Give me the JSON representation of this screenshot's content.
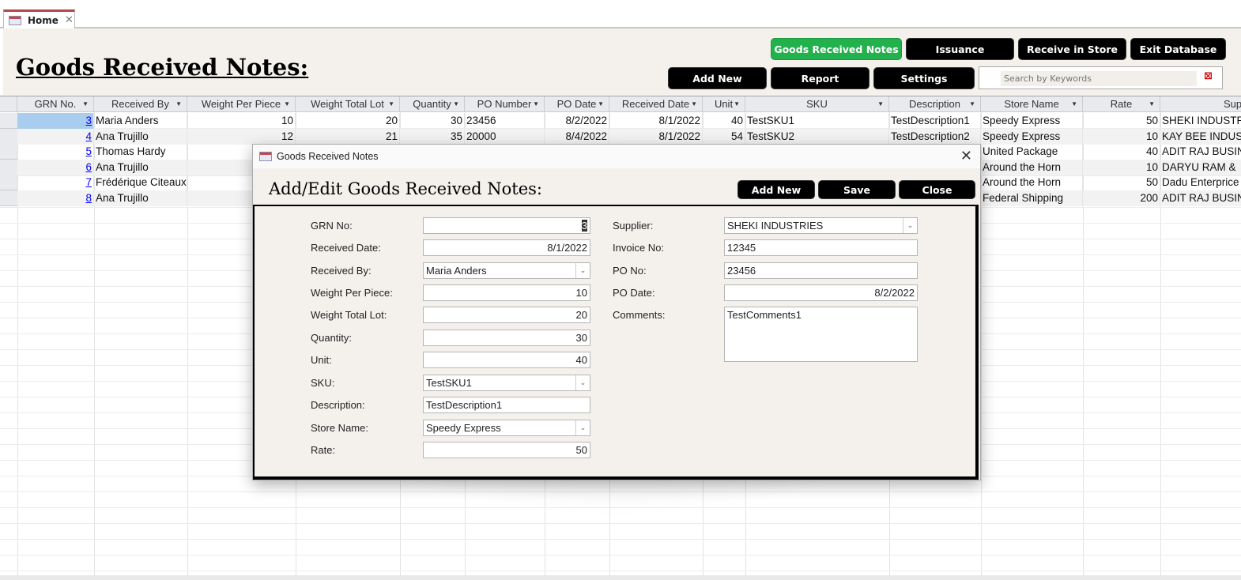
{
  "tab": {
    "label": "Home",
    "icon": "form-icon"
  },
  "header": {
    "title": "Goods Received Notes:",
    "nav_buttons": [
      "Goods Received Notes",
      "Issuance",
      "Receive in Store",
      "Exit Database"
    ],
    "action_buttons": [
      "Add New",
      "Report",
      "Settings"
    ],
    "search_placeholder": "Search by Keywords",
    "active_color": "#22b14c"
  },
  "table": {
    "columns": [
      "GRN No.",
      "Received By",
      "Weight Per Piece",
      "Weight Total Lot",
      "Quantity",
      "PO Number",
      "PO Date",
      "Received Date",
      "Unit",
      "SKU",
      "Description",
      "Store Name",
      "Rate",
      "Supplier"
    ],
    "rows": [
      [
        "3",
        "Maria Anders",
        "10",
        "20",
        "30",
        "23456",
        "8/2/2022",
        "8/1/2022",
        "40",
        "TestSKU1",
        "TestDescription1",
        "Speedy Express",
        "50",
        "SHEKI INDUSTR"
      ],
      [
        "4",
        "Ana Trujillo",
        "12",
        "21",
        "35",
        "20000",
        "8/4/2022",
        "8/1/2022",
        "54",
        "TestSKU2",
        "TestDescription2",
        "Speedy Express",
        "10",
        "KAY BEE INDUS"
      ],
      [
        "5",
        "Thomas Hardy",
        "",
        "",
        "",
        "",
        "",
        "",
        "",
        "",
        "",
        "United Package",
        "40",
        "ADIT RAJ BUSIN"
      ],
      [
        "6",
        "Ana Trujillo",
        "",
        "",
        "",
        "",
        "",
        "",
        "",
        "",
        "",
        "Around the Horn",
        "10",
        "DARYU RAM &"
      ],
      [
        "7",
        "Frédérique Citeaux",
        "",
        "",
        "",
        "",
        "",
        "",
        "",
        "",
        "",
        "Around the Horn",
        "50",
        "Dadu Enterprice"
      ],
      [
        "8",
        "Ana Trujillo",
        "",
        "",
        "",
        "",
        "",
        "",
        "",
        "",
        "",
        "Federal Shipping",
        "200",
        "ADIT RAJ BUSIN"
      ]
    ]
  },
  "dialog": {
    "title": "Goods Received Notes",
    "heading": "Add/Edit Goods Received Notes:",
    "buttons": [
      "Add New",
      "Save",
      "Close"
    ],
    "left_fields": [
      {
        "label": "GRN No:",
        "value": "3",
        "combo": false
      },
      {
        "label": "Received Date:",
        "value": "8/1/2022",
        "combo": false
      },
      {
        "label": "Received By:",
        "value": "Maria Anders",
        "combo": true
      },
      {
        "label": "Weight Per Piece:",
        "value": "10",
        "combo": false
      },
      {
        "label": "Weight Total Lot:",
        "value": "20",
        "combo": false
      },
      {
        "label": "Quantity:",
        "value": "30",
        "combo": false
      },
      {
        "label": "Unit:",
        "value": "40",
        "combo": false
      },
      {
        "label": "SKU:",
        "value": "TestSKU1",
        "combo": true
      },
      {
        "label": "Description:",
        "value": "TestDescription1",
        "combo": false
      },
      {
        "label": "Store Name:",
        "value": "Speedy Express",
        "combo": true
      },
      {
        "label": "Rate:",
        "value": "50",
        "combo": false
      }
    ],
    "right_fields": [
      {
        "label": "Supplier:",
        "value": "SHEKI INDUSTRIES",
        "combo": true
      },
      {
        "label": "Invoice No:",
        "value": "12345",
        "combo": false
      },
      {
        "label": "PO No:",
        "value": "23456",
        "combo": false
      },
      {
        "label": "PO Date:",
        "value": "8/2/2022",
        "combo": false
      },
      {
        "label": "Comments:",
        "value": "TestComments1",
        "combo": false
      }
    ]
  }
}
